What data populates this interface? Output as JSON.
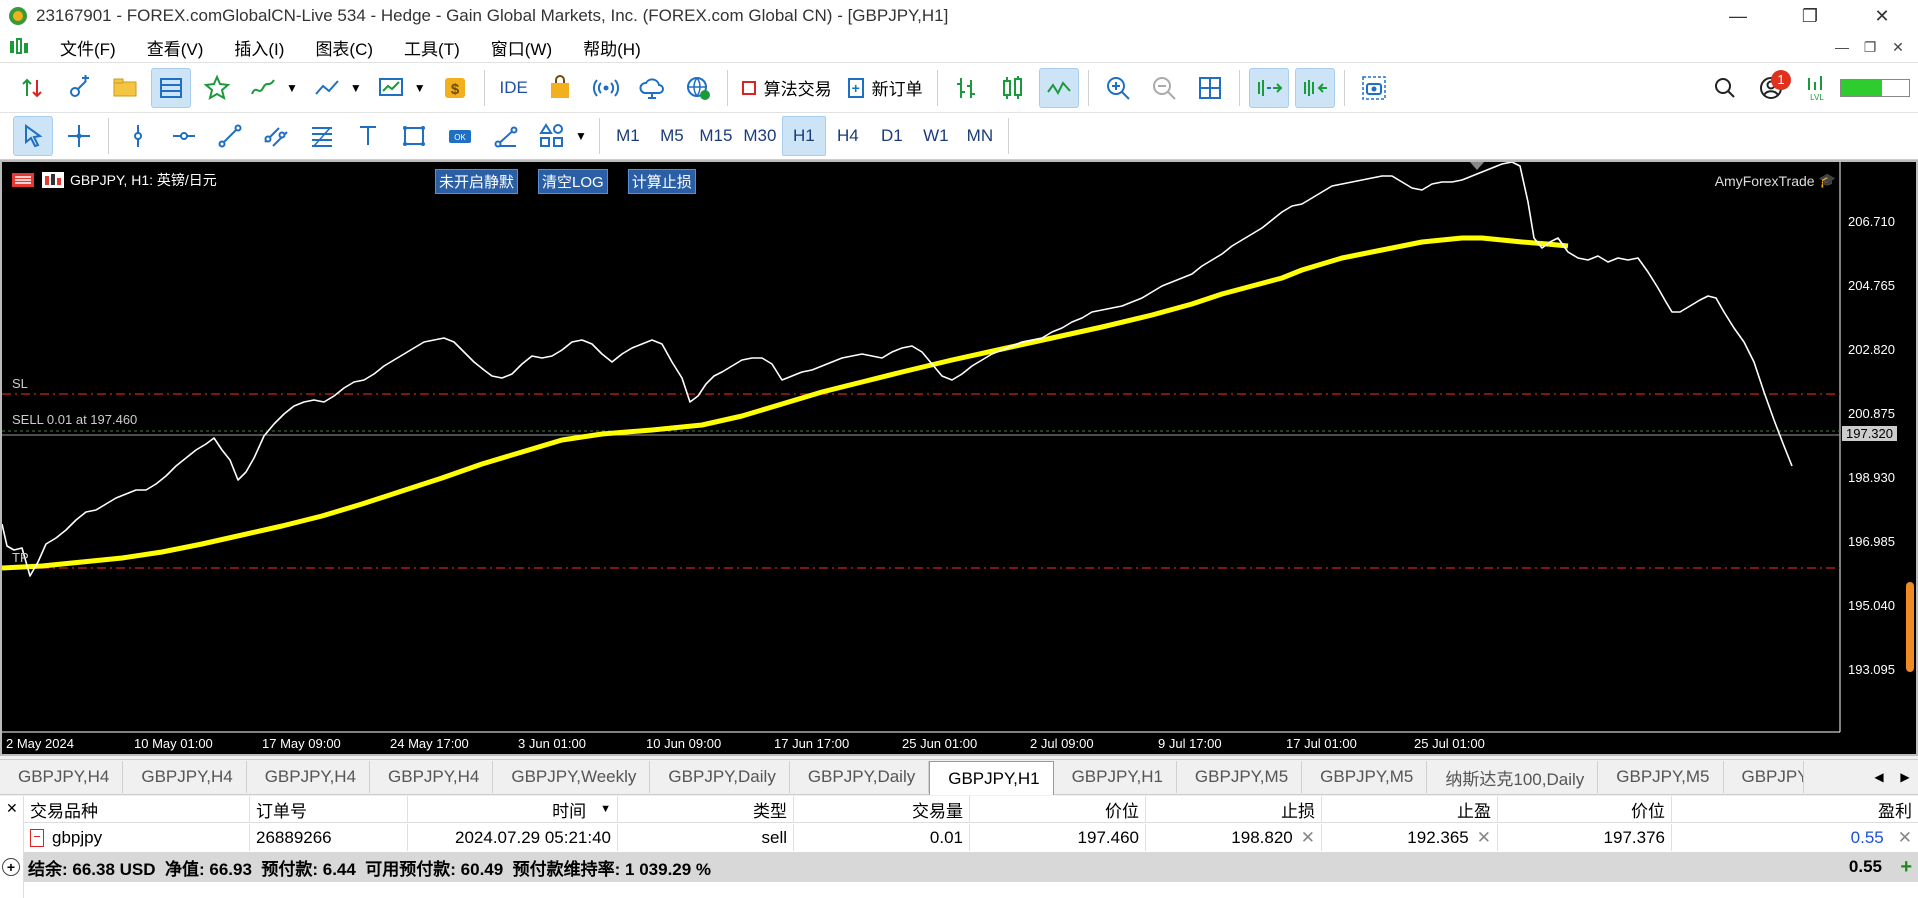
{
  "window": {
    "title": "23167901 - FOREX.comGlobalCN-Live 534 - Hedge - Gain Global Markets, Inc. (FOREX.com Global CN) - [GBPJPY,H1]",
    "minimize": "—",
    "restore": "❐",
    "close": "✕"
  },
  "menu": [
    "文件(F)",
    "查看(V)",
    "插入(I)",
    "图表(C)",
    "工具(T)",
    "窗口(W)",
    "帮助(H)"
  ],
  "toolbar": {
    "algo_trading": "算法交易",
    "new_order": "新订单",
    "ide": "IDE",
    "notification_count": "1"
  },
  "timeframes": [
    "M1",
    "M5",
    "M15",
    "M30",
    "H1",
    "H4",
    "D1",
    "W1",
    "MN"
  ],
  "active_timeframe": "H1",
  "chart": {
    "symbol_label": "GBPJPY, H1:  英镑/日元",
    "btn_silent": "未开启静默",
    "btn_clear_log": "清空LOG",
    "btn_calc_sl": "计算止损",
    "brand": "AmyForexTrade",
    "sl_label": "SL",
    "tp_label": "TP",
    "sell_label": "SELL 0.01 at 197.460",
    "current_price": "197.320",
    "price_ticks": [
      "206.710",
      "204.765",
      "202.820",
      "200.875",
      "198.930",
      "196.985",
      "195.040",
      "193.095"
    ],
    "time_ticks": [
      "2 May 2024",
      "10 May 01:00",
      "17 May 09:00",
      "24 May 17:00",
      "3 Jun 01:00",
      "10 Jun 09:00",
      "17 Jun 17:00",
      "25 Jun 01:00",
      "2 Jul 09:00",
      "9 Jul 17:00",
      "17 Jul 01:00",
      "25 Jul 01:00"
    ],
    "sl_price": 198.82,
    "tp_price": 192.365,
    "entry_price": 197.46,
    "colors": {
      "background": "#000000",
      "price_line": "#ffffff",
      "ma_line": "#ffff00",
      "sl_tp_line": "#cc2222"
    }
  },
  "tabs": [
    "GBPJPY,H4",
    "GBPJPY,H4",
    "GBPJPY,H4",
    "GBPJPY,H4",
    "GBPJPY,Weekly",
    "GBPJPY,Daily",
    "GBPJPY,Daily",
    "GBPJPY,H1",
    "GBPJPY,H1",
    "GBPJPY,M5",
    "GBPJPY,M5",
    "纳斯达克100,Daily",
    "GBPJPY,M5",
    "GBPJPY"
  ],
  "active_tab": 7,
  "terminal": {
    "headers": [
      "交易品种",
      "订单号",
      "时间",
      "类型",
      "交易量",
      "价位",
      "止损",
      "止盈",
      "价位",
      "盈利"
    ],
    "row": {
      "symbol": "gbpjpy",
      "ticket": "26889266",
      "time": "2024.07.29 05:21:40",
      "type": "sell",
      "volume": "0.01",
      "open_price": "197.460",
      "sl": "198.820",
      "tp": "192.365",
      "price": "197.376",
      "profit": "0.55"
    },
    "summary": "结余: 66.38 USD  净值: 66.93  预付款: 6.44  可用预付款: 60.49  预付款维持率: 1 039.29 %",
    "summary_total": "0.55"
  }
}
